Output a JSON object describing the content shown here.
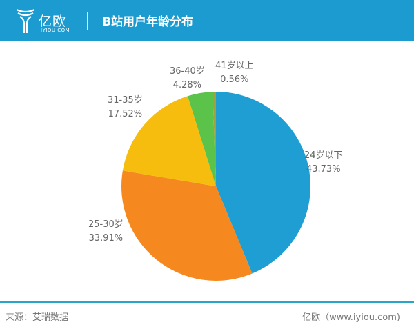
{
  "header": {
    "logo_cn": "亿欧",
    "logo_en": "IYIOU·COM",
    "title": "B站用户年龄分布",
    "bg_color": "#1b9bd0"
  },
  "chart_data": {
    "type": "pie",
    "title": "B站用户年龄分布",
    "start_angle_deg": 0,
    "direction": "clockwise-from-top",
    "categories": [
      "24岁以下",
      "25-30岁",
      "31-35岁",
      "36-40岁",
      "41岁以上"
    ],
    "values": [
      43.73,
      33.91,
      17.52,
      4.28,
      0.56
    ],
    "labels": [
      "43.73%",
      "33.91%",
      "17.52%",
      "4.28%",
      "0.56%"
    ],
    "colors": [
      "#1f9ed3",
      "#f5891f",
      "#f6bd0e",
      "#5cc34a",
      "#a1a23b"
    ],
    "legend": "none (data labels beside slices)"
  },
  "slices": [
    {
      "name": "24岁以下",
      "pct": "43.73%"
    },
    {
      "name": "25-30岁",
      "pct": "33.91%"
    },
    {
      "name": "31-35岁",
      "pct": "17.52%"
    },
    {
      "name": "36-40岁",
      "pct": "4.28%"
    },
    {
      "name": "41岁以上",
      "pct": "0.56%"
    }
  ],
  "footer": {
    "source": "来源：艾瑞数据",
    "credit": "亿欧（www.iyiou.com)"
  }
}
